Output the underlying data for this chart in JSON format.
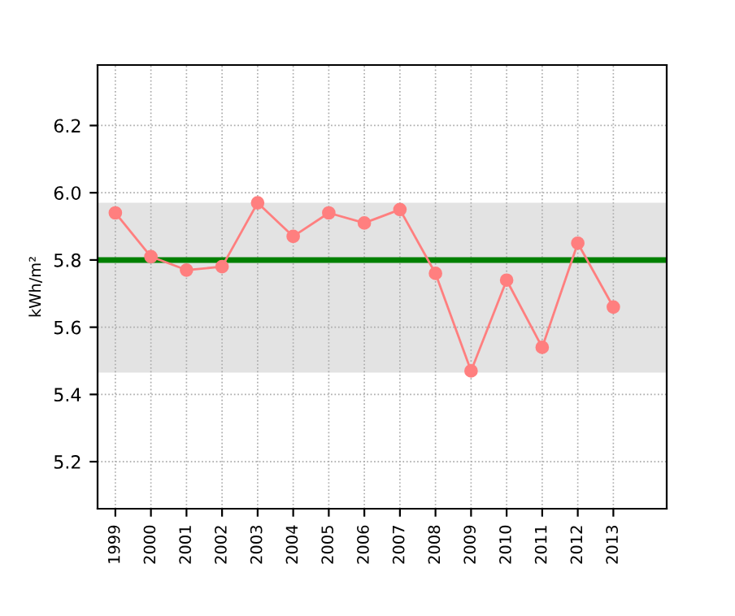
{
  "chart_data": {
    "type": "line",
    "ylabel": "kWh/m²",
    "x": [
      1999,
      2000,
      2001,
      2002,
      2003,
      2004,
      2005,
      2006,
      2007,
      2008,
      2009,
      2010,
      2011,
      2012,
      2013
    ],
    "series": [
      {
        "color": "#ff7f7f",
        "values": [
          5.94,
          5.81,
          5.77,
          5.78,
          5.97,
          5.87,
          5.94,
          5.91,
          5.95,
          5.76,
          5.47,
          5.74,
          5.54,
          5.85,
          5.66
        ]
      }
    ],
    "xlim": [
      1998.5,
      2014.5
    ],
    "xticks": [
      1999,
      2000,
      2001,
      2002,
      2003,
      2004,
      2005,
      2006,
      2007,
      2008,
      2009,
      2010,
      2011,
      2012,
      2013
    ],
    "ylim": [
      5.06,
      6.38
    ],
    "yticks": [
      5.2,
      5.4,
      5.6,
      5.8,
      {
        "value": 6.0,
        "label": "6.0"
      },
      6.2
    ],
    "ref_lines": [
      {
        "axis": "y",
        "value": 5.8,
        "color": "#008000"
      }
    ],
    "bands": [
      {
        "axis": "y",
        "from": 5.465,
        "to": 5.97,
        "color": "#e3e3e3"
      }
    ],
    "grid": true,
    "marker": "circle",
    "line_style": "solid"
  }
}
